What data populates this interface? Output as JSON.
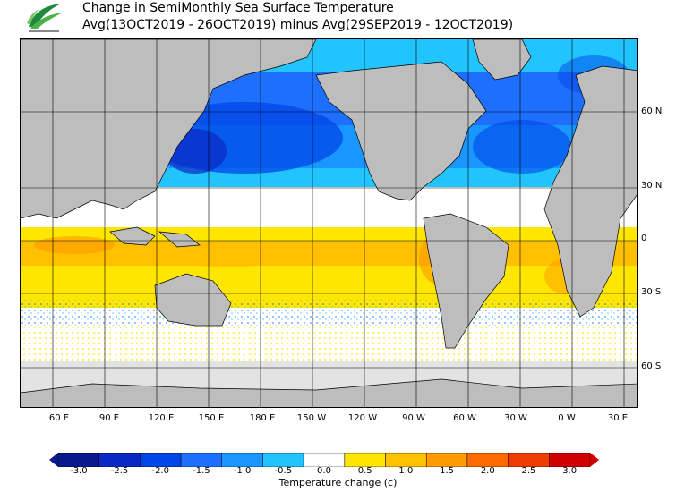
{
  "title_line1": "Change in SemiMonthly Sea Surface Temperature",
  "title_line2": "Avg(13OCT2019 - 26OCT2019) minus Avg(29SEP2019 - 12OCT2019)",
  "lon_labels": [
    "60 E",
    "90 E",
    "120 E",
    "150 E",
    "180 E",
    "150 W",
    "120 W",
    "90 W",
    "60 W",
    "30 W",
    "0 W",
    "30 E"
  ],
  "lat_labels": [
    "60 N",
    "30 N",
    "0",
    "30 S",
    "60 S"
  ],
  "colorbar": {
    "label": "Temperature change  (c)",
    "ticks": [
      "-3.0",
      "-2.5",
      "-2.0",
      "-1.5",
      "-1.0",
      "-0.5",
      "0.0",
      "0.5",
      "1.0",
      "1.5",
      "2.0",
      "2.5",
      "3.0"
    ],
    "colors": [
      "#0a1a8c",
      "#0b28c4",
      "#0046e6",
      "#1f6fff",
      "#1996ff",
      "#22c4ff",
      "#ffffff",
      "#ffe600",
      "#ffc000",
      "#ff9a00",
      "#ff6a00",
      "#f03c00",
      "#d10000"
    ]
  },
  "colors": {
    "land": "#bdbdbd",
    "ice": "#e3e3e3",
    "grid": "#000000"
  }
}
